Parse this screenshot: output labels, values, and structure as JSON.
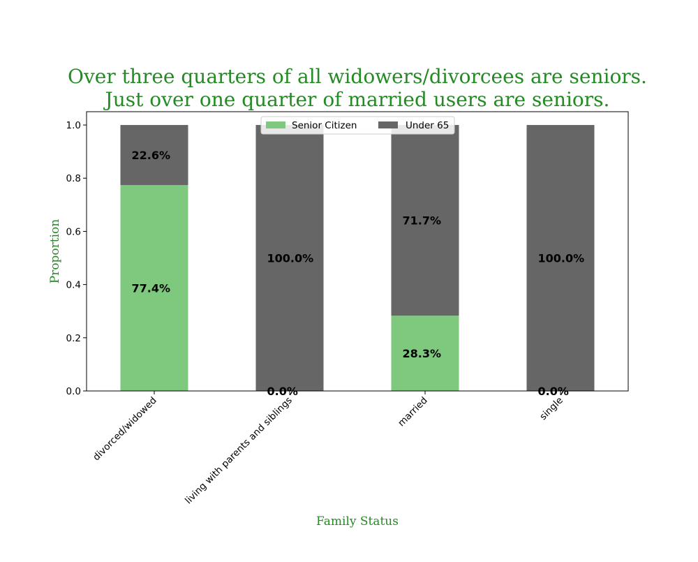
{
  "chart_data": {
    "type": "bar",
    "stacked": true,
    "title_lines": [
      "Over three quarters of all widowers/divorcees are seniors.",
      "Just over one quarter of married users are seniors."
    ],
    "xlabel": "Family Status",
    "ylabel": "Proportion",
    "categories": [
      "divorced/widowed",
      "living with parents and siblings",
      "married",
      "single"
    ],
    "series": [
      {
        "name": "Senior Citizen",
        "color": "#7fc97f",
        "values": [
          0.774,
          0.0,
          0.283,
          0.0
        ],
        "labels": [
          "77.4%",
          "0.0%",
          "28.3%",
          "0.0%"
        ]
      },
      {
        "name": "Under 65",
        "color": "#666666",
        "values": [
          0.226,
          1.0,
          0.717,
          1.0
        ],
        "labels": [
          "22.6%",
          "100.0%",
          "71.7%",
          "100.0%"
        ]
      }
    ],
    "ylim": [
      0,
      1.05
    ],
    "yticks": [
      0.0,
      0.2,
      0.4,
      0.6,
      0.8,
      1.0
    ],
    "ytick_labels": [
      "0.0",
      "0.2",
      "0.4",
      "0.6",
      "0.8",
      "1.0"
    ],
    "grid": false,
    "legend_position": "top-center",
    "title_color": "#228b22",
    "axis_label_color": "#228b22"
  }
}
